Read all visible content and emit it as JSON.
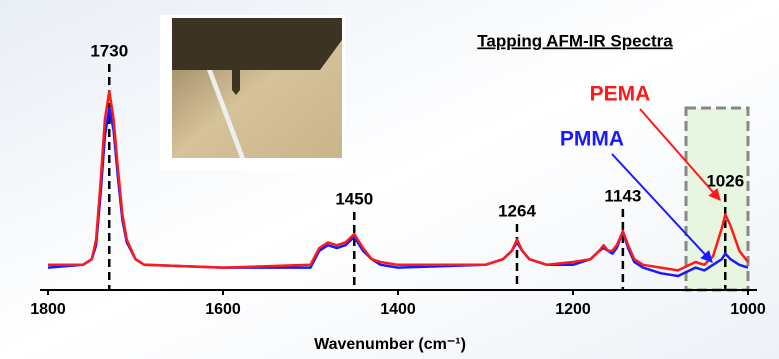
{
  "chart_data": {
    "type": "line",
    "title": "Tapping AFM-IR Spectra",
    "x_label": "Wavenumber (cm⁻¹)",
    "x": [
      1800,
      1760,
      1750,
      1745,
      1740,
      1735,
      1730,
      1725,
      1720,
      1715,
      1710,
      1700,
      1690,
      1600,
      1500,
      1490,
      1480,
      1470,
      1460,
      1450,
      1440,
      1430,
      1420,
      1400,
      1300,
      1280,
      1270,
      1264,
      1258,
      1250,
      1230,
      1200,
      1180,
      1170,
      1165,
      1160,
      1155,
      1150,
      1143,
      1137,
      1130,
      1120,
      1100,
      1080,
      1060,
      1050,
      1040,
      1030,
      1026,
      1020,
      1010,
      1000
    ],
    "series": [
      {
        "name": "PEMA",
        "color": "#ff1a1a",
        "values": [
          0.09,
          0.09,
          0.11,
          0.18,
          0.38,
          0.61,
          0.71,
          0.61,
          0.43,
          0.27,
          0.18,
          0.11,
          0.09,
          0.08,
          0.09,
          0.15,
          0.17,
          0.16,
          0.17,
          0.2,
          0.15,
          0.11,
          0.1,
          0.09,
          0.09,
          0.11,
          0.14,
          0.18,
          0.14,
          0.11,
          0.09,
          0.1,
          0.11,
          0.14,
          0.16,
          0.14,
          0.14,
          0.16,
          0.21,
          0.16,
          0.11,
          0.09,
          0.08,
          0.07,
          0.1,
          0.09,
          0.12,
          0.22,
          0.27,
          0.23,
          0.14,
          0.1
        ]
      },
      {
        "name": "PMMA",
        "color": "#1a1aff",
        "values": [
          0.08,
          0.09,
          0.11,
          0.16,
          0.34,
          0.55,
          0.65,
          0.57,
          0.4,
          0.25,
          0.17,
          0.11,
          0.09,
          0.08,
          0.08,
          0.14,
          0.16,
          0.15,
          0.16,
          0.19,
          0.14,
          0.11,
          0.09,
          0.08,
          0.09,
          0.11,
          0.14,
          0.17,
          0.14,
          0.11,
          0.09,
          0.09,
          0.11,
          0.14,
          0.15,
          0.14,
          0.13,
          0.15,
          0.21,
          0.15,
          0.1,
          0.08,
          0.06,
          0.05,
          0.08,
          0.07,
          0.09,
          0.11,
          0.13,
          0.11,
          0.09,
          0.08
        ]
      }
    ],
    "peaks": [
      1730,
      1450,
      1264,
      1143,
      1026
    ],
    "xlim": [
      1800,
      1000
    ],
    "xticks": [
      1800,
      1600,
      1400,
      1200,
      1000
    ],
    "ylim": [
      0,
      1
    ]
  }
}
